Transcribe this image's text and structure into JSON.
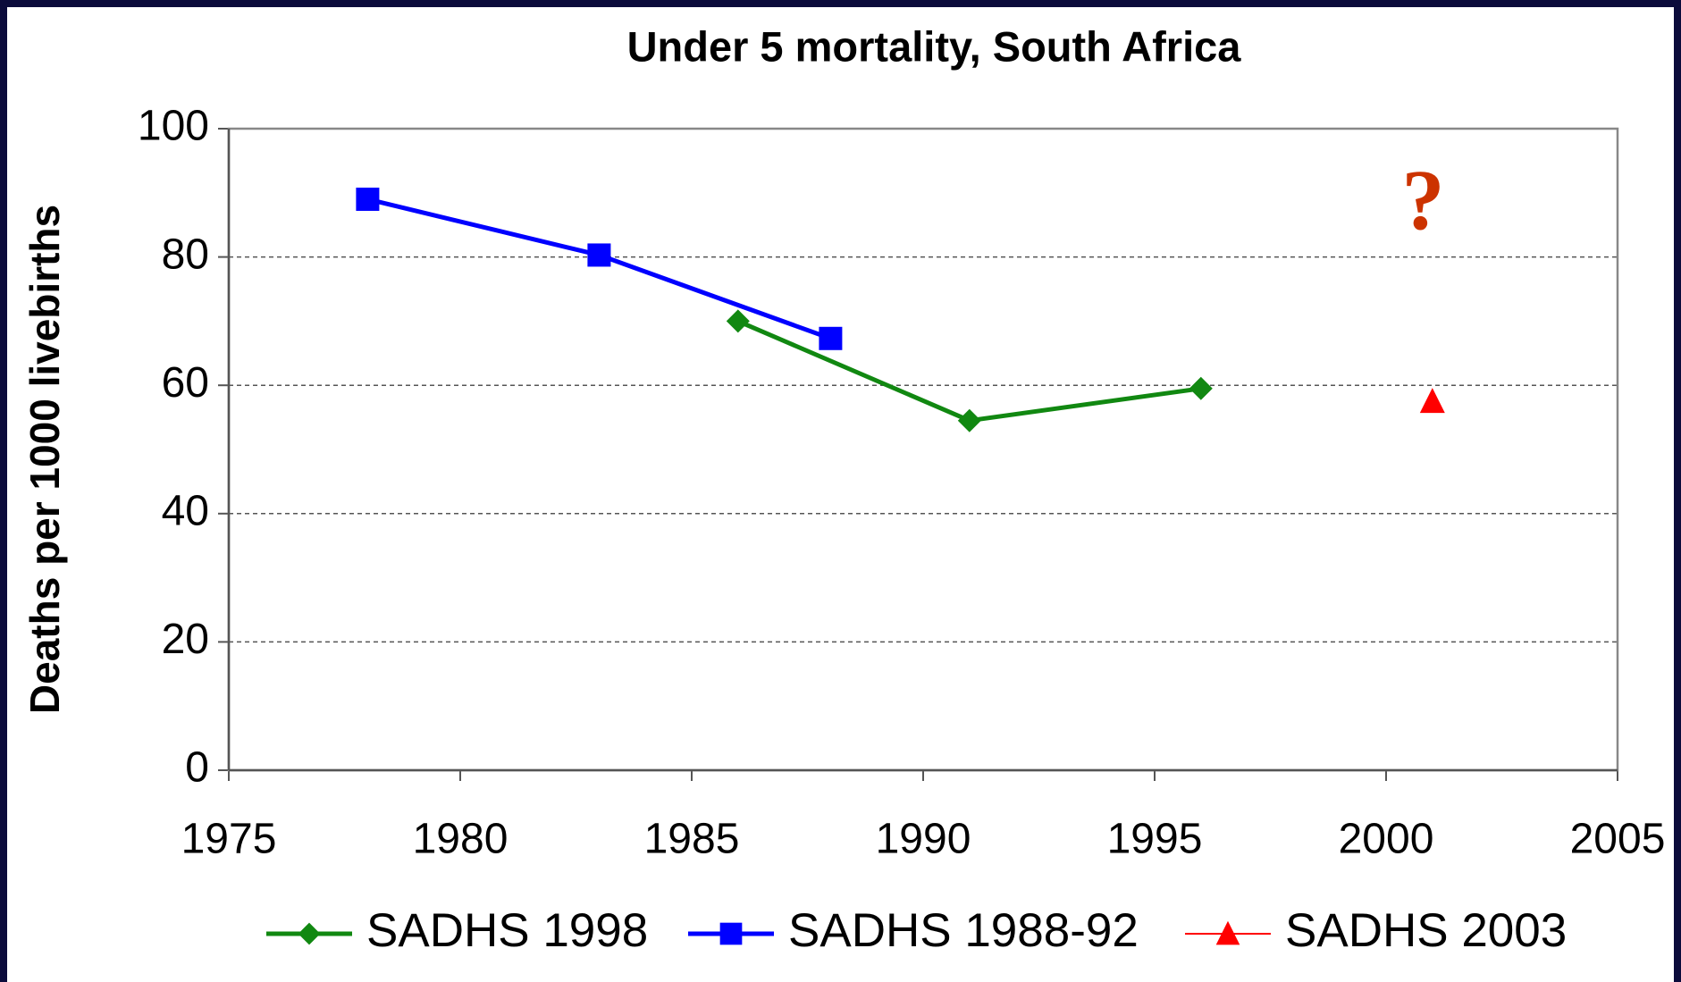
{
  "chart_data": {
    "type": "line",
    "title": "Under 5 mortality, South Africa",
    "ylabel": "Deaths per 1000 livebirths",
    "xlim": [
      1975,
      2005
    ],
    "xticks": [
      1975,
      1980,
      1985,
      1990,
      1995,
      2000,
      2005
    ],
    "ylim": [
      0,
      100
    ],
    "yticks": [
      0,
      20,
      40,
      60,
      80,
      100
    ],
    "grid": true,
    "legend": "bottom",
    "series": [
      {
        "name": "SADHS 1998",
        "color": "#118811",
        "marker": "diamond",
        "line": true,
        "x": [
          1986,
          1991,
          1996
        ],
        "values": [
          70,
          54.5,
          59.5
        ]
      },
      {
        "name": "SADHS 1988-92",
        "color": "#0000ff",
        "marker": "square",
        "line": true,
        "x": [
          1978,
          1983,
          1988
        ],
        "values": [
          89,
          80.3,
          67.3
        ]
      },
      {
        "name": "SADHS 2003",
        "color": "#ff0000",
        "marker": "triangle",
        "line": false,
        "x": [
          2001
        ],
        "values": [
          57.5
        ]
      }
    ],
    "annotations": [
      {
        "text": "?",
        "x": 2000.8,
        "y": 87.5,
        "color": "#cc3300"
      }
    ]
  }
}
